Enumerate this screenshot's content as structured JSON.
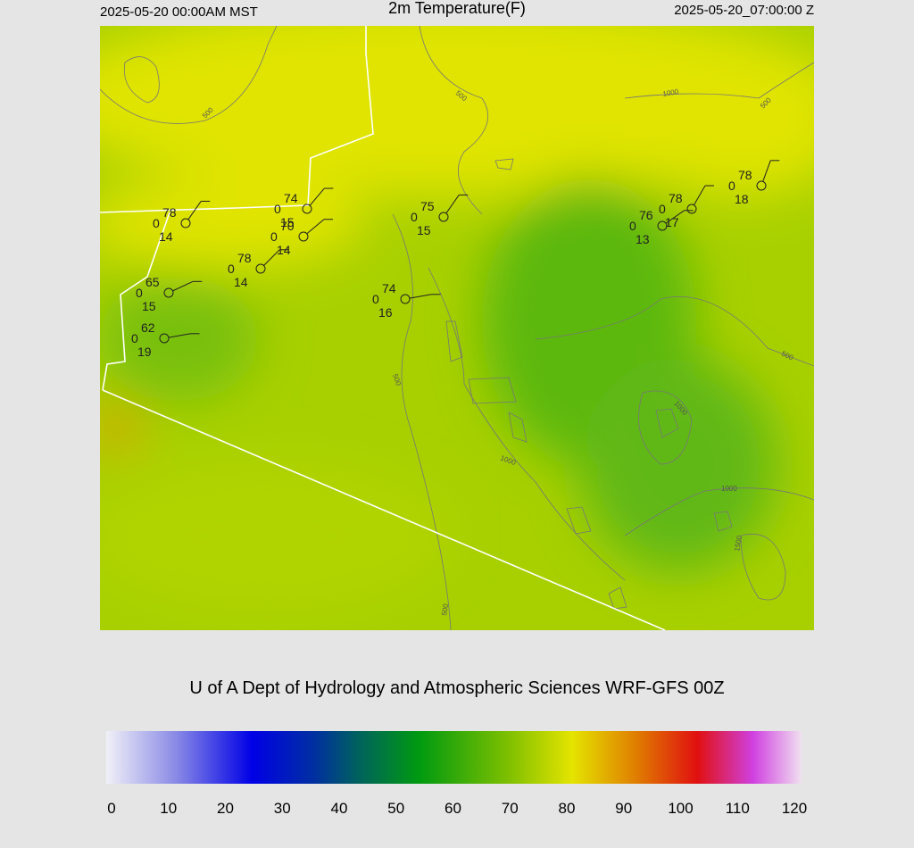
{
  "header": {
    "valid_local": "2025-05-20 00:00AM MST",
    "title": "2m Temperature(F)",
    "valid_utc": "2025-05-20_07:00:00 Z"
  },
  "stations": [
    {
      "temp": 78,
      "zero": 0,
      "dew": 14
    },
    {
      "temp": 74,
      "zero": 0,
      "dew": 15
    },
    {
      "temp": 70,
      "zero": 0,
      "dew": 14
    },
    {
      "temp": 78,
      "zero": 0,
      "dew": 14
    },
    {
      "temp": 65,
      "zero": 0,
      "dew": 15
    },
    {
      "temp": 62,
      "zero": 0,
      "dew": 19
    },
    {
      "temp": 74,
      "zero": 0,
      "dew": 16
    },
    {
      "temp": 75,
      "zero": 0,
      "dew": 15
    },
    {
      "temp": 76,
      "zero": 0,
      "dew": 13
    },
    {
      "temp": 78,
      "zero": 0,
      "dew": 17
    },
    {
      "temp": 78,
      "zero": 0,
      "dew": 18
    }
  ],
  "contour_labels": [
    "500",
    "500",
    "1000",
    "500",
    "500",
    "500",
    "1000",
    "1000",
    "1000",
    "1500",
    "500"
  ],
  "credit": "U of A Dept of Hydrology and Atmospheric Sciences WRF-GFS 00Z",
  "colorbar": {
    "range": [
      0,
      120
    ],
    "ticks": [
      0,
      10,
      20,
      30,
      40,
      50,
      60,
      70,
      80,
      90,
      100,
      110,
      120
    ]
  }
}
